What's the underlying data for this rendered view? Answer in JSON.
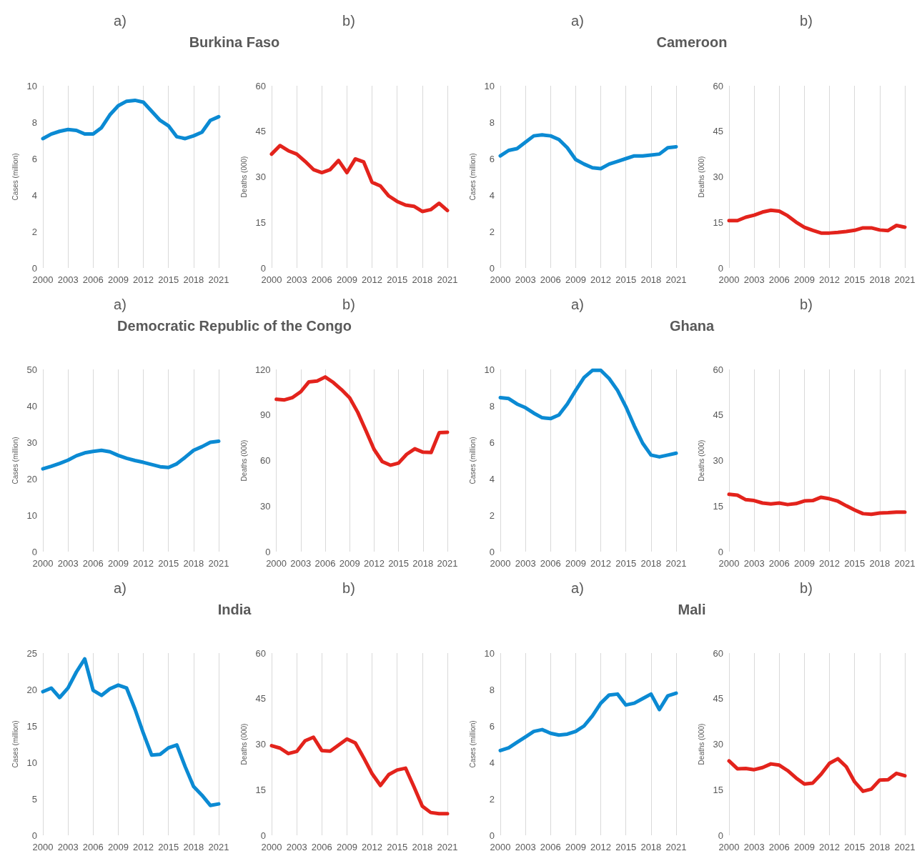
{
  "chart_data": [
    {
      "type": "line",
      "title": "a)",
      "subtitle": "Burkina Faso",
      "ylabel": "Cases (million)",
      "x": [
        2000,
        2001,
        2002,
        2003,
        2004,
        2005,
        2006,
        2007,
        2008,
        2009,
        2010,
        2011,
        2012,
        2013,
        2014,
        2015,
        2016,
        2017,
        2018,
        2019,
        2020,
        2021
      ],
      "xlim": [
        2000,
        2021
      ],
      "xticks": [
        2000,
        2003,
        2006,
        2009,
        2012,
        2015,
        2018,
        2021
      ],
      "ylim": [
        0,
        10
      ],
      "yticks": [
        0,
        2,
        4,
        6,
        8,
        10
      ],
      "grid": "x",
      "marker": "none",
      "line_style": "solid",
      "series": [
        {
          "color": "#0b8ad3",
          "values": [
            7.1,
            7.35,
            7.5,
            7.6,
            7.55,
            7.35,
            7.35,
            7.7,
            8.4,
            8.9,
            9.15,
            9.2,
            9.1,
            8.6,
            8.1,
            7.8,
            7.2,
            7.1,
            7.25,
            7.45,
            8.1,
            8.3
          ]
        }
      ]
    },
    {
      "type": "line",
      "title": "b)",
      "ylabel": "Deaths (000)",
      "x": [
        2000,
        2001,
        2002,
        2003,
        2004,
        2005,
        2006,
        2007,
        2008,
        2009,
        2010,
        2011,
        2012,
        2013,
        2014,
        2015,
        2016,
        2017,
        2018,
        2019,
        2020,
        2021
      ],
      "xlim": [
        2000,
        2021
      ],
      "xticks": [
        2000,
        2003,
        2006,
        2009,
        2012,
        2015,
        2018,
        2021
      ],
      "ylim": [
        0,
        60
      ],
      "yticks": [
        0,
        15,
        30,
        45,
        60
      ],
      "grid": "x",
      "marker": "none",
      "line_style": "solid",
      "series": [
        {
          "color": "#e3231c",
          "values": [
            37.5,
            40.3,
            38.6,
            37.5,
            35.1,
            32.4,
            31.4,
            32.4,
            35.4,
            31.4,
            35.9,
            34.9,
            28.2,
            27,
            23.7,
            21.9,
            20.7,
            20.3,
            18.6,
            19.2,
            21.3,
            18.9
          ]
        }
      ]
    },
    {
      "type": "line",
      "title": "a)",
      "subtitle": "Cameroon",
      "ylabel": "Cases (million)",
      "x": [
        2000,
        2001,
        2002,
        2003,
        2004,
        2005,
        2006,
        2007,
        2008,
        2009,
        2010,
        2011,
        2012,
        2013,
        2014,
        2015,
        2016,
        2017,
        2018,
        2019,
        2020,
        2021
      ],
      "xlim": [
        2000,
        2021
      ],
      "xticks": [
        2000,
        2003,
        2006,
        2009,
        2012,
        2015,
        2018,
        2021
      ],
      "ylim": [
        0,
        10
      ],
      "yticks": [
        0,
        2,
        4,
        6,
        8,
        10
      ],
      "grid": "x",
      "marker": "none",
      "line_style": "solid",
      "series": [
        {
          "color": "#0b8ad3",
          "values": [
            6.15,
            6.45,
            6.55,
            6.9,
            7.25,
            7.3,
            7.25,
            7.05,
            6.6,
            5.95,
            5.7,
            5.5,
            5.45,
            5.7,
            5.85,
            6.0,
            6.15,
            6.15,
            6.2,
            6.25,
            6.6,
            6.65
          ]
        }
      ]
    },
    {
      "type": "line",
      "title": "b)",
      "ylabel": "Deaths (000)",
      "x": [
        2000,
        2001,
        2002,
        2003,
        2004,
        2005,
        2006,
        2007,
        2008,
        2009,
        2010,
        2011,
        2012,
        2013,
        2014,
        2015,
        2016,
        2017,
        2018,
        2019,
        2020,
        2021
      ],
      "xlim": [
        2000,
        2021
      ],
      "xticks": [
        2000,
        2003,
        2006,
        2009,
        2012,
        2015,
        2018,
        2021
      ],
      "ylim": [
        0,
        60
      ],
      "yticks": [
        0,
        15,
        30,
        45,
        60
      ],
      "grid": "x",
      "marker": "none",
      "line_style": "solid",
      "series": [
        {
          "color": "#e3231c",
          "values": [
            15.6,
            15.6,
            16.7,
            17.4,
            18.4,
            19,
            18.7,
            17.2,
            15.1,
            13.4,
            12.4,
            11.5,
            11.5,
            11.7,
            12,
            12.4,
            13.2,
            13.2,
            12.5,
            12.3,
            14,
            13.4
          ]
        }
      ]
    },
    {
      "type": "line",
      "title": "a)",
      "subtitle": "Democratic Republic of the Congo",
      "ylabel": "Cases (million)",
      "x": [
        2000,
        2001,
        2002,
        2003,
        2004,
        2005,
        2006,
        2007,
        2008,
        2009,
        2010,
        2011,
        2012,
        2013,
        2014,
        2015,
        2016,
        2017,
        2018,
        2019,
        2020,
        2021
      ],
      "xlim": [
        2000,
        2021
      ],
      "xticks": [
        2000,
        2003,
        2006,
        2009,
        2012,
        2015,
        2018,
        2021
      ],
      "ylim": [
        0,
        50
      ],
      "yticks": [
        0,
        10,
        20,
        30,
        40,
        50
      ],
      "grid": "x",
      "marker": "none",
      "line_style": "solid",
      "series": [
        {
          "color": "#0b8ad3",
          "values": [
            22.7,
            23.4,
            24.2,
            25.1,
            26.3,
            27.1,
            27.5,
            27.8,
            27.4,
            26.4,
            25.6,
            25,
            24.5,
            23.9,
            23.3,
            23.1,
            24.1,
            25.9,
            27.8,
            28.8,
            30,
            30.3
          ]
        }
      ]
    },
    {
      "type": "line",
      "title": "b)",
      "ylabel": "Deaths (000)",
      "x": [
        2000,
        2001,
        2002,
        2003,
        2004,
        2005,
        2006,
        2007,
        2008,
        2009,
        2010,
        2011,
        2012,
        2013,
        2014,
        2015,
        2016,
        2017,
        2018,
        2019,
        2020,
        2021
      ],
      "xlim": [
        2000,
        2021
      ],
      "xticks": [
        2000,
        2003,
        2006,
        2009,
        2012,
        2015,
        2018,
        2021
      ],
      "ylim": [
        0,
        120
      ],
      "yticks": [
        0,
        30,
        60,
        90,
        120
      ],
      "grid": "x",
      "marker": "none",
      "line_style": "solid",
      "series": [
        {
          "color": "#e3231c",
          "values": [
            100.3,
            99.9,
            101.5,
            105.3,
            111.8,
            112.4,
            115,
            111.4,
            106.7,
            101.3,
            91.7,
            79.6,
            67.3,
            59.3,
            56.9,
            58.3,
            64.1,
            67.7,
            65.5,
            65.3,
            78.4,
            78.6
          ]
        }
      ]
    },
    {
      "type": "line",
      "title": "a)",
      "subtitle": "Ghana",
      "ylabel": "Cases (million)",
      "x": [
        2000,
        2001,
        2002,
        2003,
        2004,
        2005,
        2006,
        2007,
        2008,
        2009,
        2010,
        2011,
        2012,
        2013,
        2014,
        2015,
        2016,
        2017,
        2018,
        2019,
        2020,
        2021
      ],
      "xlim": [
        2000,
        2021
      ],
      "xticks": [
        2000,
        2003,
        2006,
        2009,
        2012,
        2015,
        2018,
        2021
      ],
      "ylim": [
        0,
        10
      ],
      "yticks": [
        0,
        2,
        4,
        6,
        8,
        10
      ],
      "grid": "x",
      "marker": "none",
      "line_style": "solid",
      "series": [
        {
          "color": "#0b8ad3",
          "values": [
            8.45,
            8.4,
            8.1,
            7.9,
            7.6,
            7.35,
            7.3,
            7.5,
            8.1,
            8.85,
            9.55,
            9.95,
            9.95,
            9.5,
            8.85,
            7.95,
            6.9,
            5.95,
            5.3,
            5.2,
            5.3,
            5.4
          ]
        }
      ]
    },
    {
      "type": "line",
      "title": "b)",
      "ylabel": "Deaths (000)",
      "x": [
        2000,
        2001,
        2002,
        2003,
        2004,
        2005,
        2006,
        2007,
        2008,
        2009,
        2010,
        2011,
        2012,
        2013,
        2014,
        2015,
        2016,
        2017,
        2018,
        2019,
        2020,
        2021
      ],
      "xlim": [
        2000,
        2021
      ],
      "xticks": [
        2000,
        2003,
        2006,
        2009,
        2012,
        2015,
        2018,
        2021
      ],
      "ylim": [
        0,
        60
      ],
      "yticks": [
        0,
        15,
        30,
        45,
        60
      ],
      "grid": "x",
      "marker": "none",
      "line_style": "solid",
      "series": [
        {
          "color": "#e3231c",
          "values": [
            18.9,
            18.6,
            17.1,
            16.8,
            16,
            15.7,
            16,
            15.5,
            15.8,
            16.7,
            16.8,
            17.9,
            17.4,
            16.6,
            15.1,
            13.7,
            12.5,
            12.3,
            12.7,
            12.8,
            13,
            13
          ]
        }
      ]
    },
    {
      "type": "line",
      "title": "a)",
      "subtitle": "India",
      "ylabel": "Cases (million)",
      "x": [
        2000,
        2001,
        2002,
        2003,
        2004,
        2005,
        2006,
        2007,
        2008,
        2009,
        2010,
        2011,
        2012,
        2013,
        2014,
        2015,
        2016,
        2017,
        2018,
        2019,
        2020,
        2021
      ],
      "xlim": [
        2000,
        2021
      ],
      "xticks": [
        2000,
        2003,
        2006,
        2009,
        2012,
        2015,
        2018,
        2021
      ],
      "ylim": [
        0,
        25
      ],
      "yticks": [
        0,
        5,
        10,
        15,
        20,
        25
      ],
      "grid": "x",
      "marker": "none",
      "line_style": "solid",
      "series": [
        {
          "color": "#0b8ad3",
          "values": [
            19.7,
            20.2,
            18.9,
            20.2,
            22.4,
            24.2,
            19.9,
            19.2,
            20.1,
            20.6,
            20.2,
            17.3,
            14,
            11,
            11.1,
            12,
            12.4,
            9.4,
            6.7,
            5.5,
            4.1,
            4.3
          ]
        }
      ]
    },
    {
      "type": "line",
      "title": "b)",
      "ylabel": "Deaths (000)",
      "x": [
        2000,
        2001,
        2002,
        2003,
        2004,
        2005,
        2006,
        2007,
        2008,
        2009,
        2010,
        2011,
        2012,
        2013,
        2014,
        2015,
        2016,
        2017,
        2018,
        2019,
        2020,
        2021
      ],
      "xlim": [
        2000,
        2021
      ],
      "xticks": [
        2000,
        2003,
        2006,
        2009,
        2012,
        2015,
        2018,
        2021
      ],
      "ylim": [
        0,
        60
      ],
      "yticks": [
        0,
        15,
        30,
        45,
        60
      ],
      "grid": "x",
      "marker": "none",
      "line_style": "solid",
      "series": [
        {
          "color": "#e3231c",
          "values": [
            29.5,
            28.7,
            26.9,
            27.6,
            31.1,
            32.3,
            27.9,
            27.7,
            29.7,
            31.7,
            30.4,
            25.5,
            20.3,
            16.4,
            20,
            21.5,
            22.1,
            16,
            9.6,
            7.5,
            7.1,
            7.1
          ]
        }
      ]
    },
    {
      "type": "line",
      "title": "a)",
      "subtitle": "Mali",
      "ylabel": "Cases (million)",
      "x": [
        2000,
        2001,
        2002,
        2003,
        2004,
        2005,
        2006,
        2007,
        2008,
        2009,
        2010,
        2011,
        2012,
        2013,
        2014,
        2015,
        2016,
        2017,
        2018,
        2019,
        2020,
        2021
      ],
      "xlim": [
        2000,
        2021
      ],
      "xticks": [
        2000,
        2003,
        2006,
        2009,
        2012,
        2015,
        2018,
        2021
      ],
      "ylim": [
        0,
        10
      ],
      "yticks": [
        0,
        2,
        4,
        6,
        8,
        10
      ],
      "grid": "x",
      "marker": "none",
      "line_style": "solid",
      "series": [
        {
          "color": "#0b8ad3",
          "values": [
            4.65,
            4.8,
            5.1,
            5.4,
            5.7,
            5.8,
            5.6,
            5.5,
            5.55,
            5.7,
            6.0,
            6.55,
            7.25,
            7.7,
            7.75,
            7.15,
            7.25,
            7.5,
            7.75,
            6.9,
            7.65,
            7.8
          ]
        }
      ]
    },
    {
      "type": "line",
      "title": "b)",
      "ylabel": "Deaths (000)",
      "x": [
        2000,
        2001,
        2002,
        2003,
        2004,
        2005,
        2006,
        2007,
        2008,
        2009,
        2010,
        2011,
        2012,
        2013,
        2014,
        2015,
        2016,
        2017,
        2018,
        2019,
        2020,
        2021
      ],
      "xlim": [
        2000,
        2021
      ],
      "xticks": [
        2000,
        2003,
        2006,
        2009,
        2012,
        2015,
        2018,
        2021
      ],
      "ylim": [
        0,
        60
      ],
      "yticks": [
        0,
        15,
        30,
        45,
        60
      ],
      "grid": "x",
      "marker": "none",
      "line_style": "solid",
      "series": [
        {
          "color": "#e3231c",
          "values": [
            24.5,
            21.9,
            22,
            21.6,
            22.3,
            23.5,
            23.1,
            21.3,
            18.9,
            16.9,
            17.2,
            20.1,
            23.7,
            25.2,
            22.6,
            17.6,
            14.5,
            15.2,
            18.2,
            18.3,
            20.4,
            19.6
          ]
        }
      ]
    }
  ]
}
